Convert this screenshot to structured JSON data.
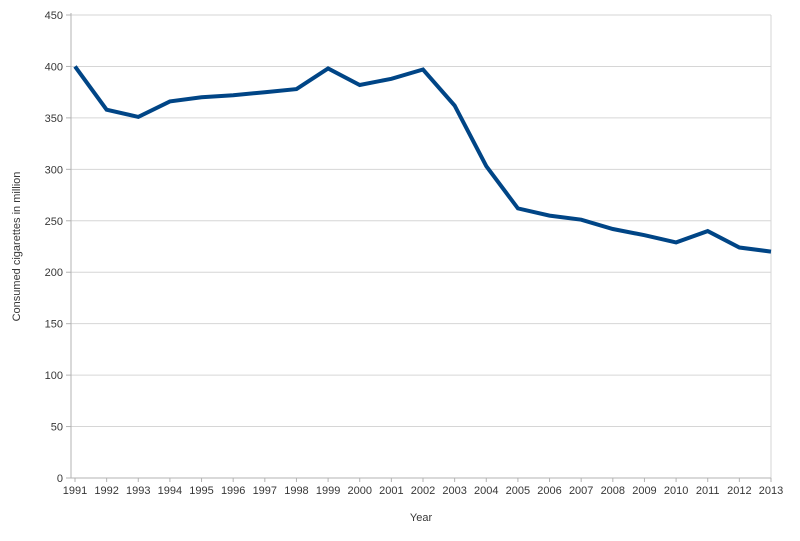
{
  "chart_data": {
    "type": "line",
    "title": "",
    "xlabel": "Year",
    "ylabel": "Consumed cigarettes in million",
    "categories": [
      "1991",
      "1992",
      "1993",
      "1994",
      "1995",
      "1996",
      "1997",
      "1998",
      "1999",
      "2000",
      "2001",
      "2002",
      "2003",
      "2004",
      "2005",
      "2006",
      "2007",
      "2008",
      "2009",
      "2010",
      "2011",
      "2012",
      "2013"
    ],
    "series": [
      {
        "name": "Consumed cigarettes in million",
        "values": [
          400,
          358,
          351,
          366,
          370,
          372,
          375,
          378,
          398,
          382,
          388,
          397,
          362,
          303,
          262,
          255,
          251,
          242,
          236,
          229,
          240,
          224,
          220
        ]
      }
    ],
    "ylim": [
      0,
      450
    ],
    "yticks": [
      0,
      50,
      100,
      150,
      200,
      250,
      300,
      350,
      400,
      450
    ],
    "grid": "horizontal",
    "legend": "none"
  },
  "colors": {
    "background": "#ffffff",
    "line": "#004586",
    "gridline": "#d6d6d6",
    "axis": "#b3b3b3",
    "text": "#373737"
  }
}
